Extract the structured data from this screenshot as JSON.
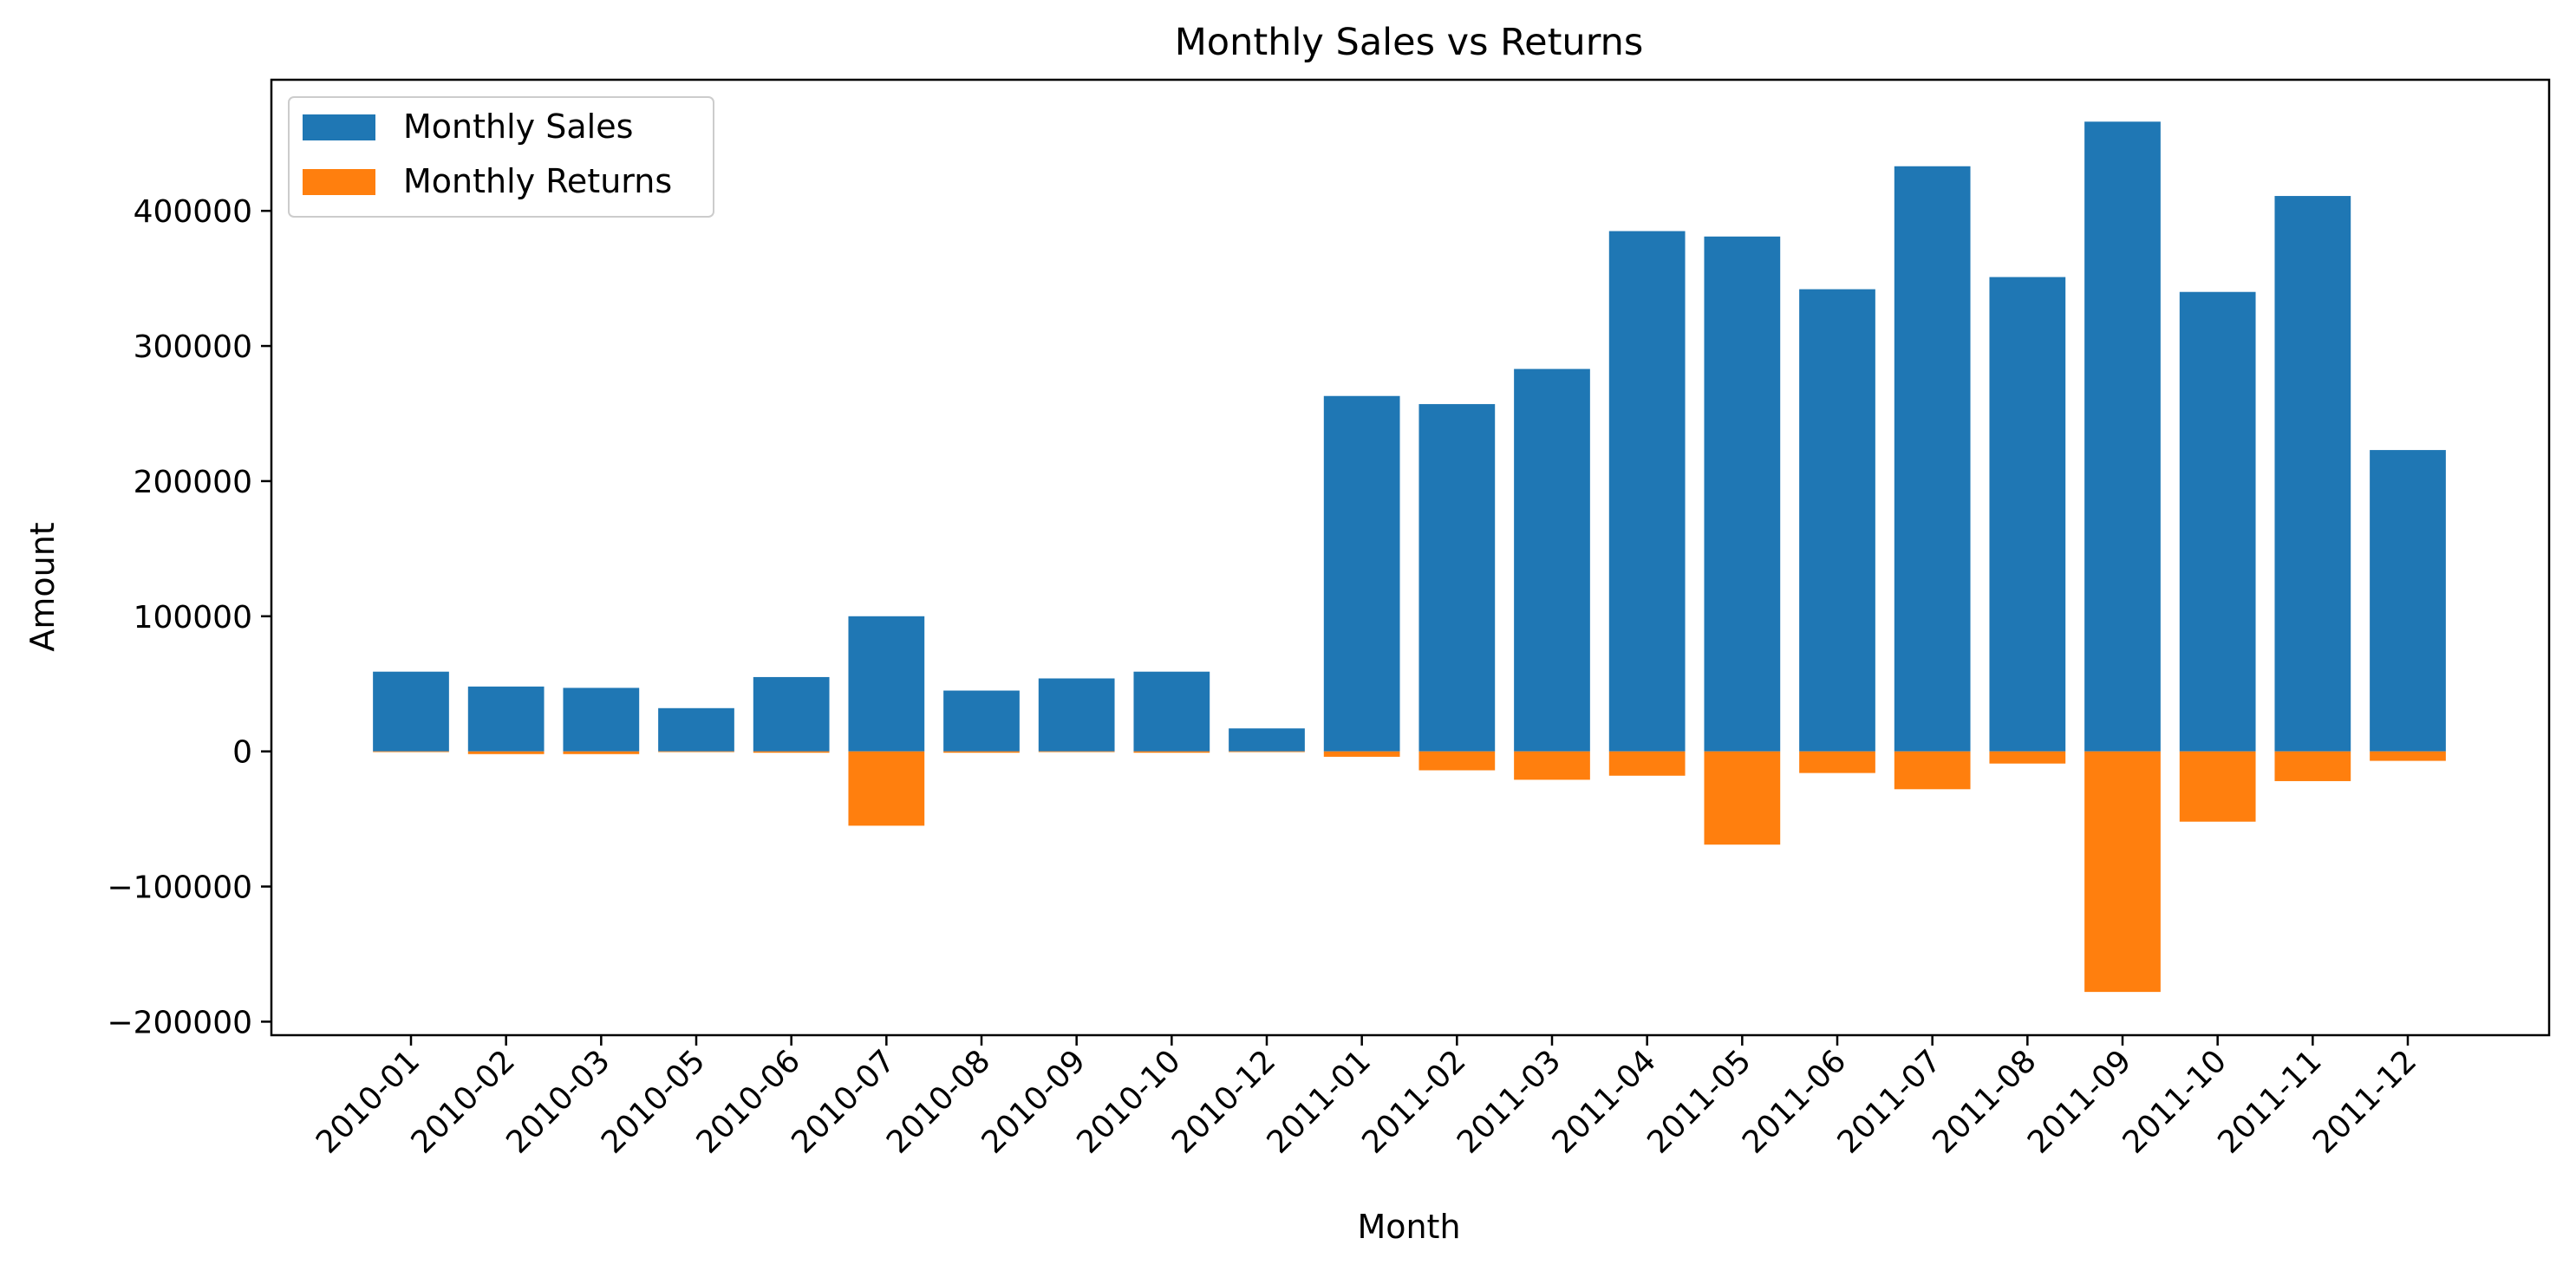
{
  "chart_data": {
    "type": "bar",
    "title": "Monthly Sales vs Returns",
    "xlabel": "Month",
    "ylabel": "Amount",
    "categories": [
      "2010-01",
      "2010-02",
      "2010-03",
      "2010-05",
      "2010-06",
      "2010-07",
      "2010-08",
      "2010-09",
      "2010-10",
      "2010-12",
      "2011-01",
      "2011-02",
      "2011-03",
      "2011-04",
      "2011-05",
      "2011-06",
      "2011-07",
      "2011-08",
      "2011-09",
      "2011-10",
      "2011-11",
      "2011-12"
    ],
    "series": [
      {
        "name": "Monthly Sales",
        "color": "#1f77b4",
        "values": [
          59000,
          48000,
          47000,
          32000,
          55000,
          100000,
          45000,
          54000,
          59000,
          17000,
          263000,
          257000,
          283000,
          385000,
          381000,
          342000,
          433000,
          351000,
          466000,
          340000,
          411000,
          223000
        ]
      },
      {
        "name": "Monthly Returns",
        "color": "#ff7f0e",
        "values": [
          0,
          -2000,
          -2000,
          0,
          -1000,
          -55000,
          -1000,
          0,
          -1000,
          0,
          -4000,
          -14000,
          -21000,
          -18000,
          -69000,
          -16000,
          -28000,
          -9000,
          -178000,
          -52000,
          -22000,
          -7000
        ]
      }
    ],
    "ylim": [
      -210000,
      497000
    ],
    "yticks": [
      -200000,
      -100000,
      0,
      100000,
      200000,
      300000,
      400000
    ],
    "ytick_labels": [
      "−200000",
      "−100000",
      "0",
      "100000",
      "200000",
      "300000",
      "400000"
    ],
    "legend_position": "top-left",
    "grid": false
  }
}
